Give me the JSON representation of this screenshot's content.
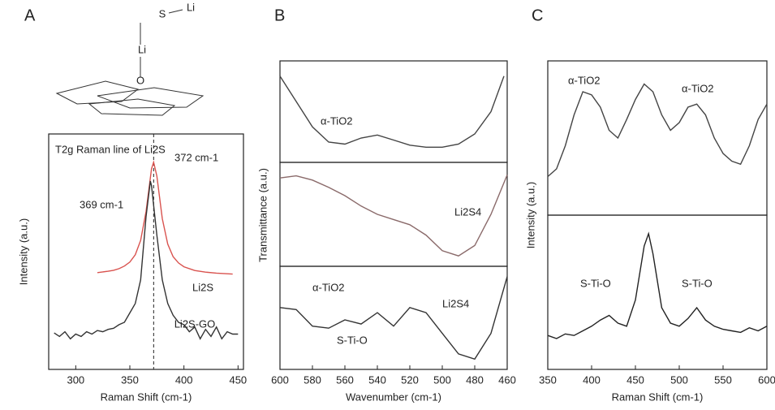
{
  "diagram": {
    "labels": [
      "S",
      "Li",
      "Li",
      "O"
    ]
  },
  "chart_data": [
    {
      "type": "line",
      "panel_label": "A",
      "xlabel": "Raman Shift (cm-1)",
      "ylabel": "Intensity (a.u.)",
      "xlim": [
        275,
        455
      ],
      "ylim": [
        0,
        100
      ],
      "xticks": [
        300,
        350,
        400,
        450
      ],
      "vline": 372,
      "annotations": [
        "T2g Raman line of Li2S",
        "372 cm-1",
        "369 cm-1"
      ],
      "series": [
        {
          "name": "Li2S",
          "color": "#d9534f",
          "x": [
            320,
            325,
            330,
            335,
            340,
            345,
            350,
            355,
            360,
            365,
            370,
            372,
            375,
            380,
            385,
            390,
            395,
            400,
            410,
            420,
            430,
            445
          ],
          "values": [
            41.1,
            41.4,
            41.7,
            42.1,
            42.8,
            43.9,
            45.6,
            48.7,
            54.8,
            67.1,
            85.2,
            88,
            82.1,
            64,
            53.2,
            47.9,
            45.2,
            43.6,
            42,
            41.3,
            40.9,
            40.5
          ]
        },
        {
          "name": "Li2S-GO",
          "color": "#333333",
          "x": [
            280,
            285,
            290,
            295,
            300,
            305,
            310,
            315,
            320,
            325,
            330,
            335,
            340,
            345,
            350,
            355,
            360,
            365,
            369,
            370,
            375,
            380,
            385,
            390,
            395,
            400,
            405,
            410,
            415,
            420,
            425,
            430,
            435,
            440,
            445,
            450
          ],
          "values": [
            15.5,
            14,
            16,
            13,
            15,
            14,
            16,
            15,
            16.5,
            16,
            17,
            17.5,
            19,
            20,
            24,
            28,
            38,
            65,
            80,
            78,
            57,
            38,
            28,
            23,
            20,
            19,
            16,
            18,
            13,
            17,
            14,
            18,
            13,
            16,
            15,
            15
          ]
        }
      ]
    },
    {
      "type": "line",
      "panel_label": "B",
      "xlim": [
        600,
        460
      ],
      "ylim": [
        0,
        100
      ],
      "annotations": [
        "α-TiO2"
      ],
      "series": [
        {
          "color": "#444444",
          "x": [
            600,
            590,
            580,
            570,
            560,
            550,
            540,
            530,
            520,
            510,
            500,
            490,
            480,
            470,
            462
          ],
          "values": [
            85,
            60,
            35,
            20,
            18,
            24,
            27,
            22,
            17,
            15,
            15,
            18,
            28,
            50,
            85
          ]
        }
      ]
    },
    {
      "type": "line",
      "ylabel": "Transmittance (a.u.)",
      "xlim": [
        600,
        460
      ],
      "ylim": [
        0,
        100
      ],
      "annotations": [
        "Li2S4"
      ],
      "series": [
        {
          "color": "#8a6a6a",
          "x": [
            600,
            590,
            580,
            570,
            560,
            550,
            540,
            530,
            520,
            510,
            500,
            490,
            480,
            470,
            460
          ],
          "values": [
            85,
            87,
            83,
            76,
            68,
            58,
            50,
            45,
            40,
            30,
            15,
            10,
            20,
            50,
            88
          ]
        }
      ]
    },
    {
      "type": "line",
      "xlabel": "Wavenumber (cm-1)",
      "xlim": [
        600,
        460
      ],
      "ylim": [
        0,
        100
      ],
      "xticks": [
        600,
        580,
        560,
        540,
        520,
        500,
        480,
        460
      ],
      "annotations": [
        "α-TiO2",
        "Li2S4",
        "S-Ti-O"
      ],
      "series": [
        {
          "color": "#333333",
          "x": [
            600,
            590,
            580,
            570,
            560,
            550,
            540,
            530,
            520,
            510,
            500,
            490,
            480,
            470,
            460
          ],
          "values": [
            60,
            58,
            42,
            40,
            48,
            44,
            55,
            42,
            60,
            55,
            35,
            15,
            10,
            35,
            90
          ]
        }
      ]
    },
    {
      "type": "line",
      "panel_label": "C",
      "ylabel": "Intensity (a.u.)",
      "xlim": [
        350,
        600
      ],
      "ylim": [
        0,
        100
      ],
      "annotations": [
        "α-TiO2",
        "α-TiO2"
      ],
      "series": [
        {
          "color": "#444444",
          "x": [
            350,
            360,
            370,
            380,
            390,
            400,
            410,
            420,
            430,
            440,
            450,
            460,
            470,
            480,
            490,
            500,
            510,
            520,
            530,
            540,
            550,
            560,
            570,
            580,
            590,
            600
          ],
          "values": [
            25,
            30,
            45,
            65,
            80,
            78,
            70,
            55,
            50,
            62,
            75,
            85,
            80,
            65,
            55,
            60,
            70,
            72,
            65,
            50,
            40,
            35,
            33,
            45,
            62,
            72
          ]
        }
      ]
    },
    {
      "type": "line",
      "xlabel": "Raman Shift (cm-1)",
      "xlim": [
        350,
        600
      ],
      "ylim": [
        0,
        100
      ],
      "xticks": [
        350,
        400,
        450,
        500,
        550,
        600
      ],
      "annotations": [
        "S-Ti-O",
        "S-Ti-O"
      ],
      "series": [
        {
          "color": "#222222",
          "x": [
            350,
            360,
            370,
            380,
            390,
            400,
            410,
            420,
            430,
            440,
            450,
            460,
            465,
            470,
            480,
            490,
            500,
            510,
            520,
            530,
            540,
            550,
            560,
            570,
            580,
            590,
            600
          ],
          "values": [
            22,
            20,
            23,
            22,
            25,
            28,
            32,
            35,
            30,
            28,
            45,
            80,
            88,
            75,
            40,
            30,
            28,
            33,
            40,
            32,
            28,
            26,
            25,
            24,
            27,
            25,
            28
          ]
        }
      ]
    }
  ]
}
